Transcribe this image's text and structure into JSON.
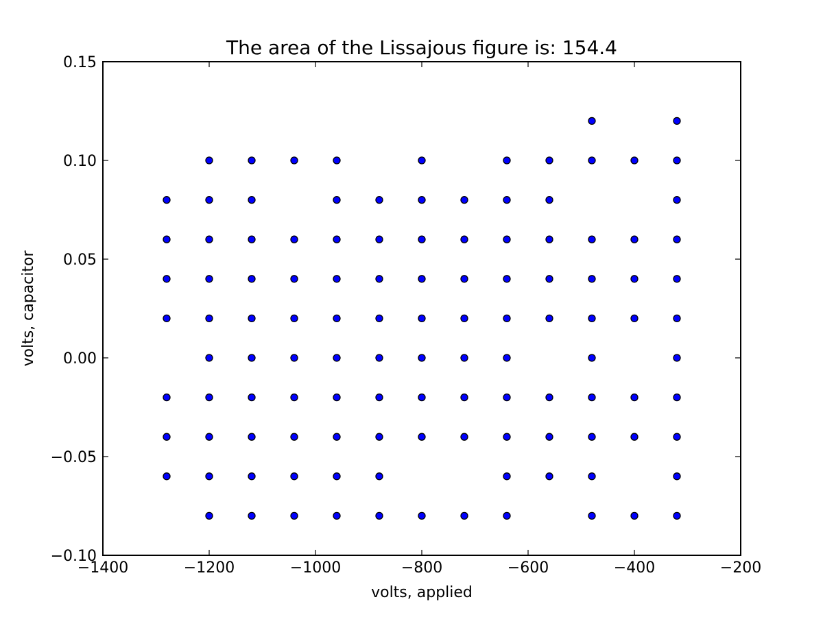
{
  "chart_data": {
    "type": "scatter",
    "title": "The area of the Lissajous figure is: 154.4",
    "xlabel": "volts, applied",
    "ylabel": "volts, capacitor",
    "xlim": [
      -1400,
      -200
    ],
    "ylim": [
      -0.1,
      0.15
    ],
    "xticks": [
      -1400,
      -1200,
      -1000,
      -800,
      -600,
      -400,
      -200
    ],
    "yticks": [
      -0.1,
      -0.05,
      0.0,
      0.05,
      0.1,
      0.15
    ],
    "xtick_labels": [
      "−1400",
      "−1200",
      "−1000",
      "−800",
      "−600",
      "−400",
      "−200"
    ],
    "ytick_labels": [
      "−0.10",
      "−0.05",
      "0.00",
      "0.05",
      "0.10",
      "0.15"
    ],
    "grid": false,
    "marker_color": "#0000ff",
    "marker_edge_color": "#000000",
    "columns": [
      {
        "x": -1280,
        "y": [
          0.08,
          0.06,
          0.04,
          0.02,
          -0.02,
          -0.04,
          -0.06
        ]
      },
      {
        "x": -1200,
        "y": [
          0.1,
          0.08,
          0.06,
          0.04,
          0.02,
          0.0,
          -0.02,
          -0.04,
          -0.06,
          -0.08
        ]
      },
      {
        "x": -1120,
        "y": [
          0.1,
          0.08,
          0.06,
          0.04,
          0.02,
          0.0,
          -0.02,
          -0.04,
          -0.06,
          -0.08
        ]
      },
      {
        "x": -1040,
        "y": [
          0.1,
          0.06,
          0.04,
          0.02,
          0.0,
          -0.02,
          -0.04,
          -0.06,
          -0.08
        ]
      },
      {
        "x": -960,
        "y": [
          0.1,
          0.08,
          0.06,
          0.04,
          0.02,
          0.0,
          -0.02,
          -0.04,
          -0.06,
          -0.08
        ]
      },
      {
        "x": -880,
        "y": [
          0.08,
          0.06,
          0.04,
          0.02,
          0.0,
          -0.02,
          -0.04,
          -0.06,
          -0.08
        ]
      },
      {
        "x": -800,
        "y": [
          0.1,
          0.08,
          0.06,
          0.04,
          0.02,
          0.0,
          -0.02,
          -0.04,
          -0.08
        ]
      },
      {
        "x": -720,
        "y": [
          0.08,
          0.06,
          0.04,
          0.02,
          0.0,
          -0.02,
          -0.04,
          -0.08
        ]
      },
      {
        "x": -640,
        "y": [
          0.1,
          0.08,
          0.06,
          0.04,
          0.02,
          0.0,
          -0.02,
          -0.04,
          -0.06,
          -0.08
        ]
      },
      {
        "x": -560,
        "y": [
          0.1,
          0.08,
          0.06,
          0.04,
          0.02,
          -0.02,
          -0.04,
          -0.06
        ]
      },
      {
        "x": -480,
        "y": [
          0.12,
          0.1,
          0.06,
          0.04,
          0.02,
          0.0,
          -0.02,
          -0.04,
          -0.06,
          -0.08
        ]
      },
      {
        "x": -400,
        "y": [
          0.1,
          0.06,
          0.04,
          0.02,
          -0.02,
          -0.04,
          -0.08
        ]
      },
      {
        "x": -320,
        "y": [
          0.12,
          0.1,
          0.08,
          0.06,
          0.04,
          0.02,
          0.0,
          -0.02,
          -0.04,
          -0.06,
          -0.08
        ]
      }
    ]
  }
}
